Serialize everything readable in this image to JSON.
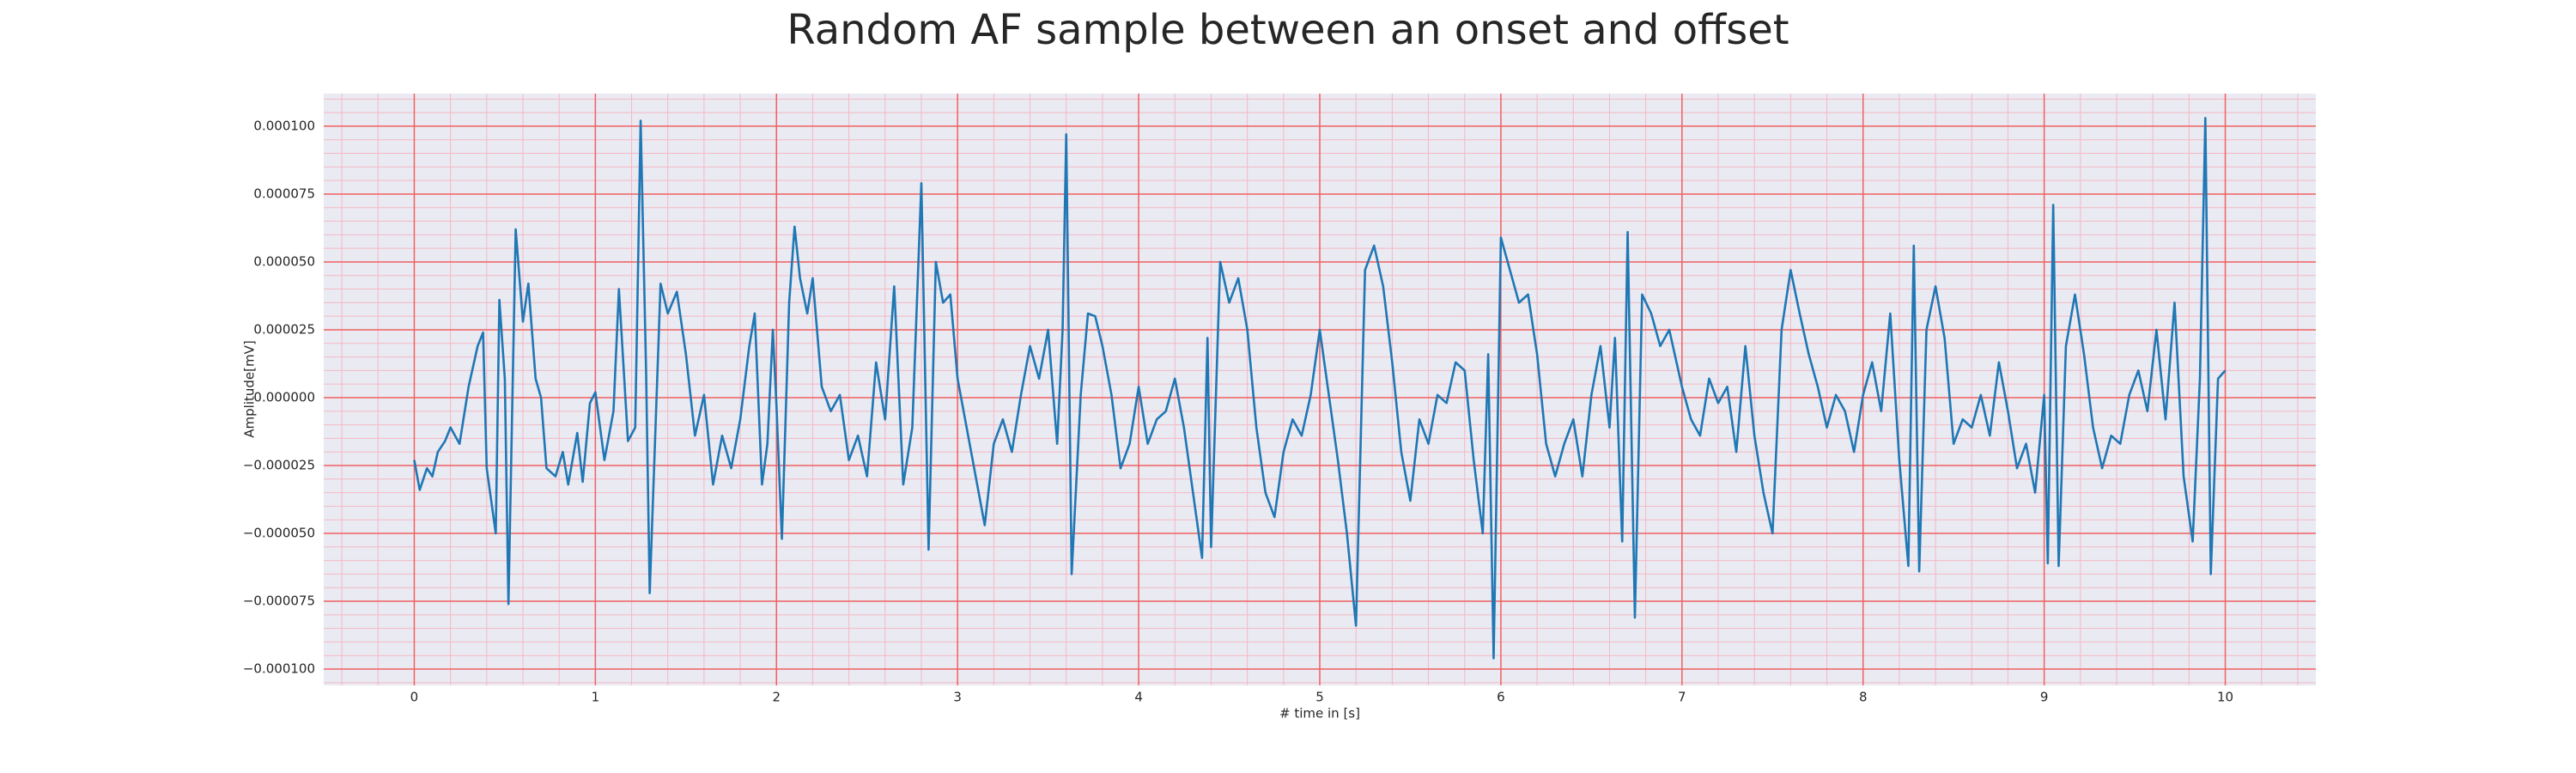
{
  "chart_data": {
    "type": "line",
    "title": "Random AF sample between an onset and offset",
    "xlabel": "# time in [s]",
    "ylabel": "Amplitude[mV]",
    "color": "#1f77b4",
    "grid": true,
    "xlim": [
      -0.5,
      10.5
    ],
    "ylim": [
      -0.000106,
      0.000112
    ],
    "xticks": [
      0,
      1,
      2,
      3,
      4,
      5,
      6,
      7,
      8,
      9,
      10
    ],
    "yticks": [
      {
        "value": -0.0001,
        "label": "−0.000100"
      },
      {
        "value": -7.5e-05,
        "label": "−0.000075"
      },
      {
        "value": -5e-05,
        "label": "−0.000050"
      },
      {
        "value": -2.5e-05,
        "label": "−0.000025"
      },
      {
        "value": 0,
        "label": "0.000000"
      },
      {
        "value": 2.5e-05,
        "label": "0.000025"
      },
      {
        "value": 5e-05,
        "label": "0.000050"
      },
      {
        "value": 7.5e-05,
        "label": "0.000075"
      },
      {
        "value": 0.0001,
        "label": "0.000100"
      }
    ],
    "x": [
      0,
      0.03,
      0.07,
      0.1,
      0.13,
      0.17,
      0.2,
      0.25,
      0.3,
      0.35,
      0.38,
      0.4,
      0.45,
      0.47,
      0.5,
      0.52,
      0.56,
      0.6,
      0.63,
      0.67,
      0.7,
      0.73,
      0.78,
      0.82,
      0.85,
      0.9,
      0.93,
      0.97,
      1.0,
      1.05,
      1.1,
      1.13,
      1.18,
      1.22,
      1.25,
      1.28,
      1.3,
      1.36,
      1.4,
      1.45,
      1.5,
      1.55,
      1.6,
      1.65,
      1.7,
      1.75,
      1.8,
      1.85,
      1.88,
      1.92,
      1.95,
      1.98,
      2.0,
      2.03,
      2.07,
      2.1,
      2.13,
      2.17,
      2.2,
      2.25,
      2.3,
      2.35,
      2.4,
      2.45,
      2.5,
      2.55,
      2.6,
      2.65,
      2.7,
      2.75,
      2.8,
      2.84,
      2.88,
      2.92,
      2.96,
      3.0,
      3.05,
      3.1,
      3.15,
      3.2,
      3.25,
      3.3,
      3.35,
      3.4,
      3.45,
      3.5,
      3.55,
      3.58,
      3.6,
      3.63,
      3.68,
      3.72,
      3.76,
      3.8,
      3.85,
      3.9,
      3.95,
      4.0,
      4.05,
      4.1,
      4.15,
      4.2,
      4.25,
      4.3,
      4.35,
      4.38,
      4.4,
      4.45,
      4.5,
      4.55,
      4.6,
      4.65,
      4.7,
      4.75,
      4.8,
      4.85,
      4.9,
      4.95,
      5.0,
      5.05,
      5.1,
      5.15,
      5.2,
      5.25,
      5.3,
      5.35,
      5.4,
      5.45,
      5.5,
      5.55,
      5.6,
      5.65,
      5.7,
      5.75,
      5.8,
      5.85,
      5.9,
      5.93,
      5.96,
      6.0,
      6.05,
      6.1,
      6.15,
      6.2,
      6.25,
      6.3,
      6.35,
      6.4,
      6.45,
      6.5,
      6.55,
      6.6,
      6.63,
      6.67,
      6.7,
      6.74,
      6.78,
      6.83,
      6.88,
      6.93,
      7.0,
      7.05,
      7.1,
      7.15,
      7.2,
      7.25,
      7.3,
      7.35,
      7.4,
      7.45,
      7.5,
      7.55,
      7.6,
      7.65,
      7.7,
      7.75,
      7.8,
      7.85,
      7.9,
      7.95,
      8.0,
      8.05,
      8.1,
      8.15,
      8.2,
      8.25,
      8.28,
      8.31,
      8.35,
      8.4,
      8.45,
      8.5,
      8.55,
      8.6,
      8.65,
      8.7,
      8.75,
      8.8,
      8.85,
      8.9,
      8.95,
      9.0,
      9.02,
      9.05,
      9.08,
      9.12,
      9.17,
      9.22,
      9.27,
      9.32,
      9.37,
      9.42,
      9.47,
      9.52,
      9.57,
      9.62,
      9.67,
      9.72,
      9.77,
      9.82,
      9.86,
      9.89,
      9.92,
      9.96,
      10.0
    ],
    "values": [
      -2.3e-05,
      -3.4e-05,
      -2.6e-05,
      -2.9e-05,
      -2e-05,
      -1.6e-05,
      -1.1e-05,
      -1.7e-05,
      4e-06,
      1.9e-05,
      2.4e-05,
      -2.6e-05,
      -5e-05,
      3.6e-05,
      7e-06,
      -7.6e-05,
      6.2e-05,
      2.8e-05,
      4.2e-05,
      7e-06,
      0,
      -2.6e-05,
      -2.9e-05,
      -2e-05,
      -3.2e-05,
      -1.3e-05,
      -3.1e-05,
      -2e-06,
      2e-06,
      -2.3e-05,
      -5e-06,
      4e-05,
      -1.6e-05,
      -1.1e-05,
      0.000102,
      1e-05,
      -7.2e-05,
      4.2e-05,
      3.1e-05,
      3.9e-05,
      1.6e-05,
      -1.4e-05,
      1e-06,
      -3.2e-05,
      -1.4e-05,
      -2.6e-05,
      -8e-06,
      1.9e-05,
      3.1e-05,
      -3.2e-05,
      -1.7e-05,
      2.5e-05,
      -3e-06,
      -5.2e-05,
      3.5e-05,
      6.3e-05,
      4.4e-05,
      3.1e-05,
      4.4e-05,
      4e-06,
      -5e-06,
      1e-06,
      -2.3e-05,
      -1.4e-05,
      -2.9e-05,
      1.3e-05,
      -8e-06,
      4.1e-05,
      -3.2e-05,
      -1.1e-05,
      7.9e-05,
      -5.6e-05,
      5e-05,
      3.5e-05,
      3.8e-05,
      7e-06,
      -1.1e-05,
      -2.9e-05,
      -4.7e-05,
      -1.7e-05,
      -8e-06,
      -2e-05,
      1e-06,
      1.9e-05,
      7e-06,
      2.5e-05,
      -1.7e-05,
      2.5e-05,
      9.7e-05,
      -6.5e-05,
      1e-06,
      3.1e-05,
      3e-05,
      1.9e-05,
      1e-06,
      -2.6e-05,
      -1.7e-05,
      4e-06,
      -1.7e-05,
      -8e-06,
      -5e-06,
      7e-06,
      -1.1e-05,
      -3.5e-05,
      -5.9e-05,
      2.2e-05,
      -5.5e-05,
      5e-05,
      3.5e-05,
      4.4e-05,
      2.5e-05,
      -1.1e-05,
      -3.5e-05,
      -4.4e-05,
      -2e-05,
      -8e-06,
      -1.4e-05,
      1e-06,
      2.5e-05,
      1e-06,
      -2.3e-05,
      -5e-05,
      -8.4e-05,
      4.7e-05,
      5.6e-05,
      4.1e-05,
      1.3e-05,
      -2e-05,
      -3.8e-05,
      -8e-06,
      -1.7e-05,
      1e-06,
      -2e-06,
      1.3e-05,
      1e-05,
      -2.3e-05,
      -5e-05,
      1.6e-05,
      -9.6e-05,
      5.9e-05,
      4.7e-05,
      3.5e-05,
      3.8e-05,
      1.6e-05,
      -1.7e-05,
      -2.9e-05,
      -1.7e-05,
      -8e-06,
      -2.9e-05,
      1e-06,
      1.9e-05,
      -1.1e-05,
      2.2e-05,
      -5.3e-05,
      6.1e-05,
      -8.1e-05,
      3.8e-05,
      3.1e-05,
      1.9e-05,
      2.5e-05,
      4e-06,
      -8e-06,
      -1.4e-05,
      7e-06,
      -2e-06,
      4e-06,
      -2e-05,
      1.9e-05,
      -1.4e-05,
      -3.5e-05,
      -5e-05,
      2.5e-05,
      4.7e-05,
      3.1e-05,
      1.6e-05,
      4e-06,
      -1.1e-05,
      1e-06,
      -5e-06,
      -2e-05,
      1e-06,
      1.3e-05,
      -5e-06,
      3.1e-05,
      -2.3e-05,
      -6.2e-05,
      5.6e-05,
      -6.4e-05,
      2.5e-05,
      4.1e-05,
      2.2e-05,
      -1.7e-05,
      -8e-06,
      -1.1e-05,
      1e-06,
      -1.4e-05,
      1.3e-05,
      -5e-06,
      -2.6e-05,
      -1.7e-05,
      -3.5e-05,
      1e-06,
      -6.1e-05,
      7.1e-05,
      -6.2e-05,
      1.9e-05,
      3.8e-05,
      1.6e-05,
      -1.1e-05,
      -2.6e-05,
      -1.4e-05,
      -1.7e-05,
      1e-06,
      1e-05,
      -5e-06,
      2.5e-05,
      -8e-06,
      3.5e-05,
      -2.9e-05,
      -5.3e-05,
      7e-06,
      0.000103,
      -6.5e-05,
      7e-06,
      1e-05
    ]
  }
}
